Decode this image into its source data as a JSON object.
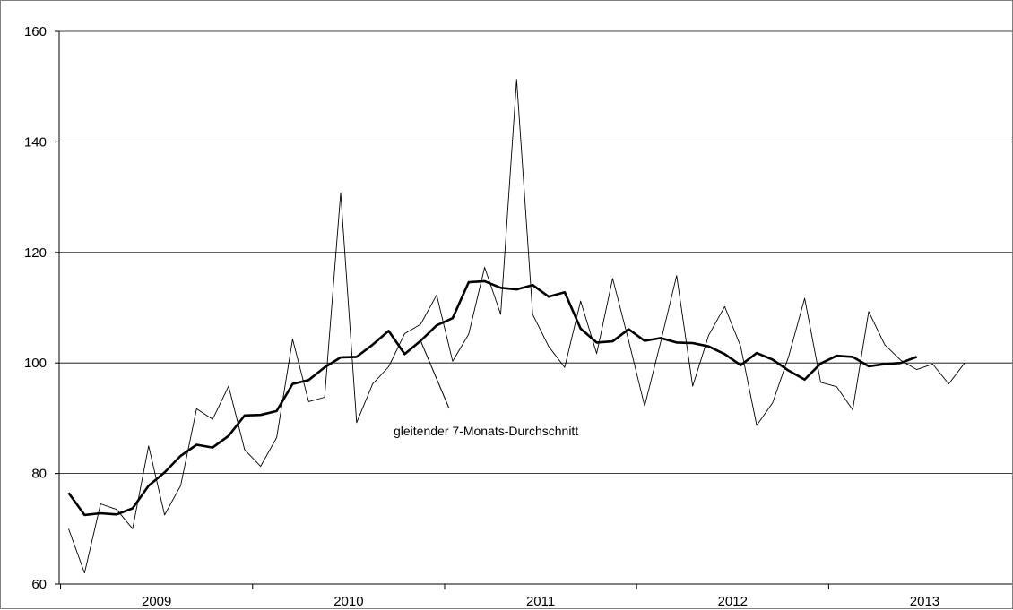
{
  "chart_data": {
    "type": "line",
    "title": "",
    "xlabel": "",
    "ylabel": "",
    "ylim": [
      60,
      160
    ],
    "yticks": [
      60,
      80,
      100,
      120,
      140,
      160
    ],
    "grid": true,
    "x_start": "2009-01",
    "x_period": "month",
    "years": [
      "2009",
      "2010",
      "2011",
      "2012",
      "2013"
    ],
    "annotation": "gleitender 7-Monats-Durchschnitt",
    "series": [
      {
        "key": "monthly",
        "style": "thin",
        "color": "#000000",
        "values": [
          70,
          62,
          74.5,
          73.5,
          70,
          85,
          72.5,
          77.8,
          91.7,
          89.8,
          95.8,
          84.3,
          81.3,
          86.5,
          104.3,
          93,
          93.8,
          130.8,
          89.2,
          96.2,
          99.3,
          105.3,
          107,
          112.3,
          100.3,
          105.2,
          117.3,
          108.8,
          151.3,
          108.8,
          103,
          99.2,
          111.2,
          101.7,
          115.3,
          104,
          92.2,
          103.8,
          115.8,
          95.8,
          105,
          110.2,
          103,
          88.7,
          92.8,
          101.2,
          111.7,
          96.5,
          95.7,
          91.5,
          109.3,
          103.3,
          100.5,
          98.8,
          99.8,
          96.2,
          100
        ]
      },
      {
        "key": "moving_average",
        "style": "thick",
        "color": "#000000",
        "values": [
          76.5,
          72.5,
          72.8,
          72.6,
          73.7,
          77.8,
          80.2,
          83.2,
          85.2,
          84.7,
          86.8,
          90.5,
          90.6,
          91.3,
          96.2,
          96.9,
          99.2,
          101,
          101.1,
          103.3,
          105.8,
          101.6,
          104,
          106.8,
          108.1,
          114.6,
          114.8,
          113.6,
          113.3,
          114.1,
          112,
          112.8,
          106.2,
          103.7,
          103.9,
          106.1,
          104,
          104.5,
          103.7,
          103.6,
          103,
          101.6,
          99.6,
          101.8,
          100.6,
          98.6,
          97,
          99.9,
          101.3,
          101.1,
          99.4,
          99.8,
          100,
          101.1
        ]
      }
    ]
  }
}
